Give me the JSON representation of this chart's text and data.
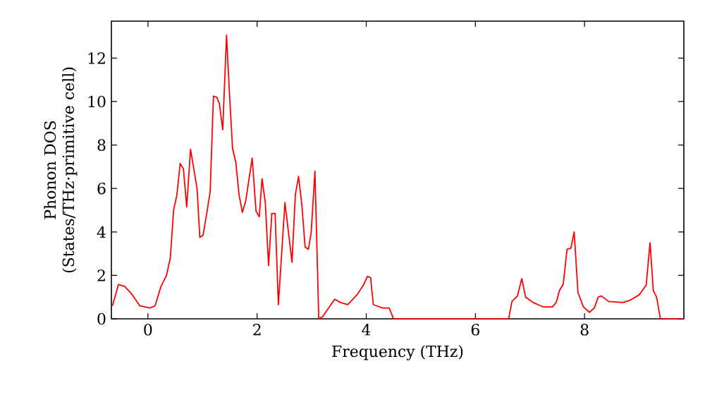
{
  "chart_data": {
    "type": "line",
    "xlabel": "Frequency (THz)",
    "ylabel": "Phonon DOS (States/THz·primitive cell)",
    "xlim": [
      -0.67,
      9.82
    ],
    "ylim": [
      0,
      13.7
    ],
    "xticks": [
      0,
      2,
      4,
      6,
      8
    ],
    "yticks": [
      0,
      2,
      4,
      6,
      8,
      10,
      12
    ],
    "grid": false,
    "marker": "none",
    "line_style": "solid",
    "series": [
      {
        "color": "#ff0000",
        "x": [
          -0.65,
          -0.54,
          -0.43,
          -0.3,
          -0.15,
          0.04,
          0.13,
          0.24,
          0.34,
          0.41,
          0.47,
          0.53,
          0.59,
          0.65,
          0.71,
          0.78,
          0.84,
          0.9,
          0.95,
          1.01,
          1.08,
          1.14,
          1.2,
          1.26,
          1.31,
          1.37,
          1.44,
          1.49,
          1.55,
          1.61,
          1.67,
          1.73,
          1.79,
          1.91,
          1.98,
          2.04,
          2.09,
          2.15,
          2.21,
          2.27,
          2.33,
          2.39,
          2.51,
          2.64,
          2.7,
          2.76,
          2.82,
          2.88,
          2.94,
          2.99,
          3.06,
          3.13,
          3.2,
          3.27,
          3.42,
          3.53,
          3.66,
          3.83,
          3.96,
          4.02,
          4.08,
          4.13,
          4.3,
          4.42,
          4.5,
          6.61,
          6.67,
          6.77,
          6.85,
          6.92,
          7.06,
          7.24,
          7.41,
          7.48,
          7.54,
          7.61,
          7.68,
          7.75,
          7.81,
          7.88,
          7.98,
          8.09,
          8.18,
          8.25,
          8.31,
          8.44,
          8.7,
          8.83,
          9.0,
          9.13,
          9.2,
          9.26,
          9.32,
          9.39,
          9.82
        ],
        "values": [
          0.6,
          1.58,
          1.5,
          1.15,
          0.6,
          0.5,
          0.6,
          1.5,
          2.0,
          2.8,
          5.0,
          5.7,
          7.15,
          6.9,
          5.15,
          7.8,
          6.9,
          6.0,
          3.75,
          3.85,
          4.9,
          5.85,
          10.25,
          10.2,
          9.9,
          8.7,
          13.05,
          10.55,
          7.85,
          7.2,
          5.7,
          4.9,
          5.4,
          7.4,
          4.95,
          4.7,
          6.45,
          5.35,
          2.45,
          4.85,
          4.85,
          0.65,
          5.35,
          2.6,
          5.7,
          6.55,
          5.25,
          3.3,
          3.2,
          3.95,
          6.8,
          0,
          0.1,
          0.35,
          0.9,
          0.75,
          0.65,
          1.1,
          1.6,
          1.95,
          1.9,
          0.65,
          0.5,
          0.5,
          0,
          0,
          0.8,
          1.05,
          1.85,
          1.0,
          0.75,
          0.55,
          0.55,
          0.75,
          1.3,
          1.6,
          3.2,
          3.25,
          4.0,
          1.2,
          0.55,
          0.3,
          0.5,
          1.0,
          1.05,
          0.8,
          0.75,
          0.85,
          1.1,
          1.55,
          3.5,
          1.3,
          1.0,
          0,
          0
        ]
      }
    ]
  }
}
